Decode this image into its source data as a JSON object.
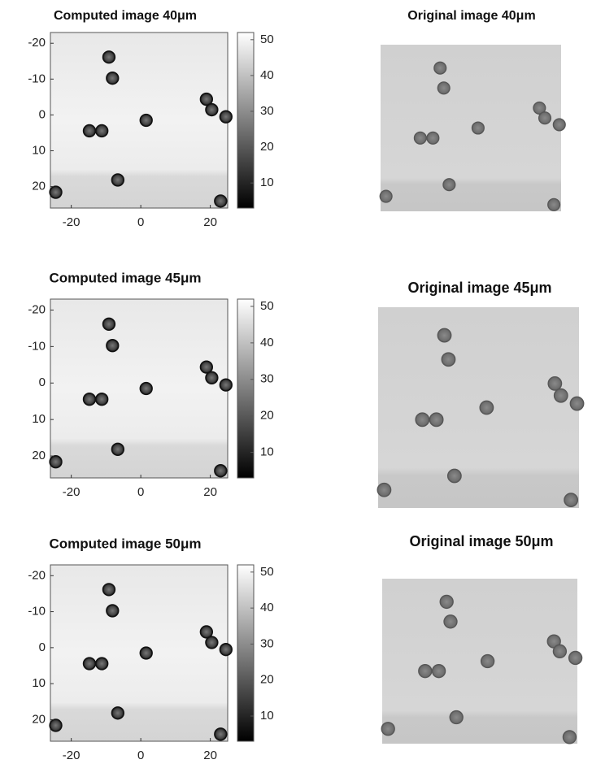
{
  "panels": [
    {
      "title": "Computed image 40μm",
      "xticks": [
        -20,
        0,
        20
      ],
      "yticks": [
        -20,
        -10,
        0,
        10,
        20
      ],
      "xlim": [
        -26,
        25
      ],
      "ylim": [
        -23,
        26
      ],
      "colorbar": {
        "ticks": [
          50,
          40,
          30,
          20,
          10
        ],
        "lim": [
          3,
          52
        ]
      }
    },
    {
      "title": "Original image 40μm"
    },
    {
      "title": "Computed image 45μm",
      "xticks": [
        -20,
        0,
        20
      ],
      "yticks": [
        -20,
        -10,
        0,
        10,
        20
      ],
      "xlim": [
        -26,
        25
      ],
      "ylim": [
        -23,
        26
      ],
      "colorbar": {
        "ticks": [
          50,
          40,
          30,
          20,
          10
        ],
        "lim": [
          3,
          52
        ]
      }
    },
    {
      "title": "Original image 45μm"
    },
    {
      "title": "Computed image 50μm",
      "xticks": [
        -20,
        0,
        20
      ],
      "yticks": [
        -20,
        -10,
        0,
        10,
        20
      ],
      "xlim": [
        -26,
        25
      ],
      "ylim": [
        -23,
        26
      ],
      "colorbar": {
        "ticks": [
          50,
          40,
          30,
          20,
          10
        ],
        "lim": [
          3,
          52
        ]
      }
    },
    {
      "title": "Original image 50μm"
    }
  ]
}
